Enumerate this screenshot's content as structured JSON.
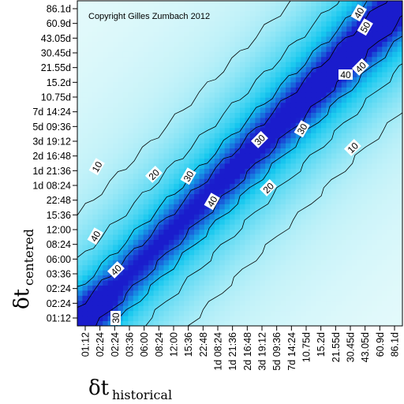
{
  "chart_data": {
    "type": "heatmap",
    "title": "",
    "annotation": "Copyright Gilles Zumbach 2012",
    "xlabel": {
      "symbol": "δt",
      "subscript": "historical"
    },
    "ylabel": {
      "symbol": "δt",
      "subscript": "centered"
    },
    "x_tick_labels": [
      "01:12",
      "02:24",
      "02:24",
      "03:36",
      "06:00",
      "08:24",
      "12:00",
      "15:36",
      "22:48",
      "1d 08:24",
      "1d 21:36",
      "2d 16:48",
      "3d 19:12",
      "5d 09:36",
      "7d 14:24",
      "10.75d",
      "15.2d",
      "21.55d",
      "30.45d",
      "43.05d",
      "60.9d",
      "86.1d"
    ],
    "y_tick_labels": [
      "01:12",
      "02:24",
      "02:24",
      "03:36",
      "06:00",
      "08:24",
      "12:00",
      "15:36",
      "22:48",
      "1d 08:24",
      "1d 21:36",
      "2d 16:48",
      "3d 19:12",
      "5d 09:36",
      "7d 14:24",
      "10.75d",
      "15.2d",
      "21.55d",
      "30.45d",
      "43.05d",
      "60.9d",
      "86.1d"
    ],
    "contour_levels": [
      10,
      20,
      30,
      40,
      50
    ],
    "contour_labels": [
      {
        "text": "10"
      },
      {
        "text": "20"
      },
      {
        "text": "30"
      },
      {
        "text": "40"
      },
      {
        "text": "40"
      },
      {
        "text": "30"
      },
      {
        "text": "40"
      },
      {
        "text": "10"
      },
      {
        "text": "20"
      },
      {
        "text": "30"
      },
      {
        "text": "40"
      },
      {
        "text": "40"
      },
      {
        "text": "50"
      },
      {
        "text": "30"
      },
      {
        "text": "40"
      }
    ],
    "colormap": {
      "low": "#e8fbfb",
      "mid": "#16c8ef",
      "high": "#1a1ccc",
      "range": [
        0,
        60
      ]
    }
  }
}
